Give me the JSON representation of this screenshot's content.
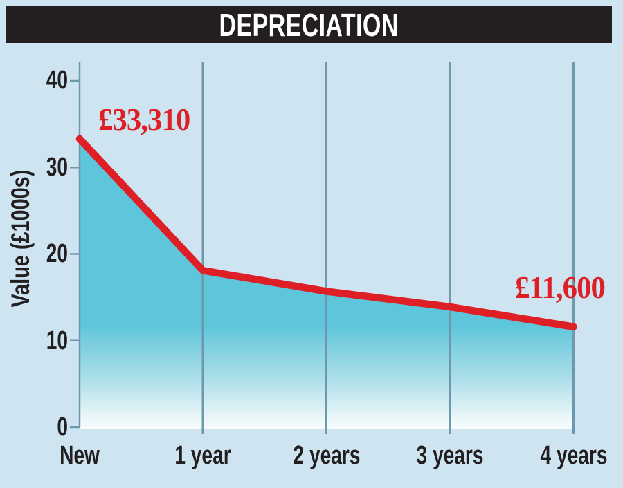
{
  "title": "DEPRECIATION",
  "colors": {
    "background": "#CEE4F1",
    "title_bar": "#231F20",
    "title_text": "#FFFFFF",
    "accent_red": "#DE1F26",
    "area_fill": "#5EC6DB",
    "area_fade": [
      "#5EC6DB",
      "#5EC6DB",
      "#ABDDE8",
      "#E9F6F9",
      "#F8FCFD"
    ],
    "gridline": "#6E98AB",
    "text": "#231F20"
  },
  "chart_data": {
    "type": "area",
    "title": "DEPRECIATION",
    "categories": [
      "New",
      "1 year",
      "2 years",
      "3 years",
      "4 years"
    ],
    "values": [
      33.31,
      18.1,
      15.7,
      13.9,
      11.6
    ],
    "xlabel": "",
    "ylabel": "Value (£1000s)",
    "ylim": [
      0,
      40
    ],
    "ytick_values": [
      0,
      10,
      20,
      30,
      40
    ],
    "yticks": [
      "0",
      "10",
      "20",
      "30",
      "40"
    ],
    "grid": "vertical gridlines at each category, no horizontal gridlines",
    "legend": "none",
    "line_color": "#DE1F26",
    "annotations": [
      {
        "label": "£33,310",
        "point": "New",
        "value_gbp": 33310
      },
      {
        "label": "£11,600",
        "point": "4 years",
        "value_gbp": 11600
      }
    ]
  }
}
